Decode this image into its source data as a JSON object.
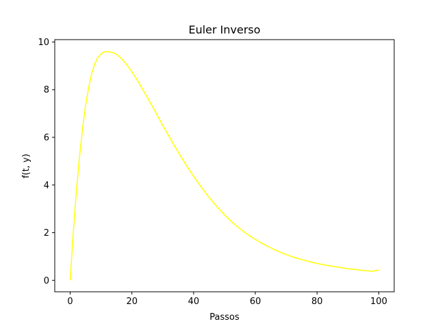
{
  "chart_data": {
    "type": "line",
    "title": "Euler Inverso",
    "xlabel": "Passos",
    "ylabel": "f(t, y)",
    "xlim": [
      -5,
      105
    ],
    "ylim": [
      -0.48,
      10.1
    ],
    "xticks": [
      0,
      20,
      40,
      60,
      80,
      100
    ],
    "yticks": [
      0,
      2,
      4,
      6,
      8,
      10
    ],
    "grid": false,
    "series": [
      {
        "color": "#ffff00",
        "x": [
          0,
          1,
          2,
          3,
          4,
          5,
          6,
          7,
          8,
          9,
          10,
          11,
          12,
          13,
          14,
          15,
          16,
          17,
          18,
          19,
          20,
          22,
          24,
          26,
          28,
          30,
          32,
          34,
          36,
          38,
          40,
          42,
          44,
          46,
          48,
          50,
          52,
          54,
          56,
          58,
          60,
          62,
          64,
          66,
          68,
          70,
          72,
          74,
          76,
          78,
          80,
          82,
          84,
          86,
          88,
          90,
          92,
          94,
          96,
          98,
          100
        ],
        "y": [
          0.0,
          2.0,
          3.7,
          5.15,
          6.35,
          7.35,
          8.1,
          8.7,
          9.1,
          9.35,
          9.5,
          9.58,
          9.6,
          9.58,
          9.55,
          9.48,
          9.38,
          9.25,
          9.1,
          8.93,
          8.75,
          8.35,
          7.9,
          7.45,
          6.98,
          6.5,
          6.05,
          5.6,
          5.17,
          4.75,
          4.37,
          4.0,
          3.65,
          3.33,
          3.03,
          2.75,
          2.5,
          2.27,
          2.07,
          1.88,
          1.72,
          1.56,
          1.43,
          1.3,
          1.19,
          1.08,
          0.99,
          0.91,
          0.84,
          0.77,
          0.71,
          0.66,
          0.61,
          0.57,
          0.53,
          0.49,
          0.46,
          0.43,
          0.4,
          0.38,
          0.43
        ]
      }
    ]
  }
}
